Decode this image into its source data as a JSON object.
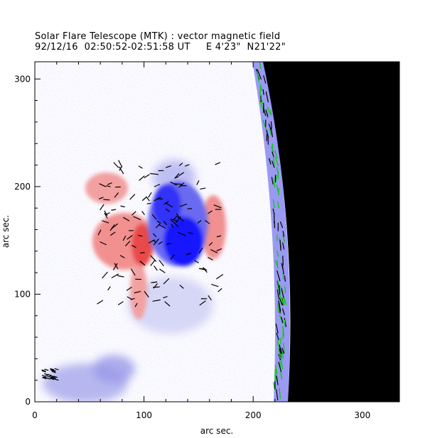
{
  "header": {
    "title": "Solar Flare Telescope (MTK) : vector magnetic field",
    "subtitle": "92/12/16  02:50:52-02:51:58 UT     E 4'23\"  N21'22\""
  },
  "chart_data": {
    "type": "heatmap",
    "title": "Solar Flare Telescope (MTK) : vector magnetic field",
    "xlabel": "arc sec.",
    "ylabel": "arc sec.",
    "xlim": [
      0,
      334
    ],
    "ylim": [
      0,
      316
    ],
    "xticks": [
      0,
      100,
      200,
      300
    ],
    "yticks": [
      0,
      100,
      200,
      300
    ],
    "colors": {
      "positive": "#ff6060",
      "negative": "#2020ff",
      "weak": "#c8c8f4",
      "transverse_vectors": "#000000",
      "limb_vectors": "#00cc00",
      "off_disk": "#000000"
    }
  }
}
